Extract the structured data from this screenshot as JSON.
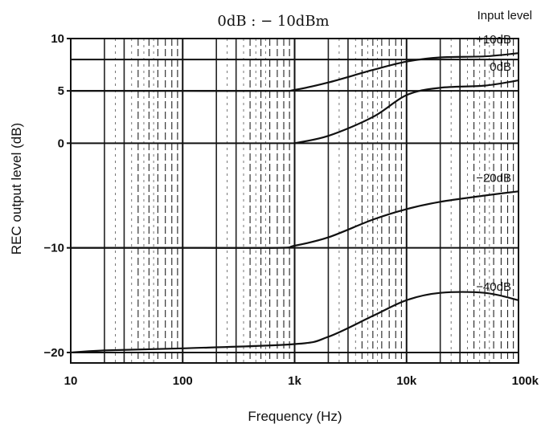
{
  "chart_data": {
    "type": "line",
    "title": "0dB : − 10dBm",
    "legend_title": "Input level",
    "xlabel": "Frequency (Hz)",
    "ylabel": "REC output level (dB)",
    "x_scale": "log",
    "xlim": [
      10,
      100000
    ],
    "ylim": [
      -21,
      10
    ],
    "grid": true,
    "x_ticks": [
      {
        "value": 10,
        "label": "10"
      },
      {
        "value": 100,
        "label": "100"
      },
      {
        "value": 1000,
        "label": "1k"
      },
      {
        "value": 10000,
        "label": "10k"
      },
      {
        "value": 100000,
        "label": "100k"
      }
    ],
    "y_ticks": [
      {
        "value": 10,
        "label": "10"
      },
      {
        "value": 5,
        "label": "5"
      },
      {
        "value": 0,
        "label": "0"
      },
      {
        "value": -10,
        "label": "−10"
      },
      {
        "value": -20,
        "label": "−20"
      }
    ],
    "reference_lines_y": [
      8,
      5,
      0,
      -10,
      -20
    ],
    "series": [
      {
        "name": "+10dB",
        "x": [
          10,
          100,
          700,
          1000,
          2000,
          5000,
          10000,
          20000,
          50000,
          100000
        ],
        "y": [
          5,
          5,
          5,
          5.1,
          5.8,
          7.0,
          7.8,
          8.2,
          8.3,
          8.6
        ]
      },
      {
        "name": "0dB",
        "x": [
          1000,
          2000,
          5000,
          10000,
          20000,
          50000,
          100000
        ],
        "y": [
          0,
          0.7,
          2.5,
          4.6,
          5.3,
          5.5,
          6.0
        ]
      },
      {
        "name": "−20dB",
        "x": [
          10,
          100,
          700,
          1000,
          2000,
          5000,
          10000,
          20000,
          50000,
          100000
        ],
        "y": [
          -10,
          -10,
          -10,
          -9.8,
          -9.0,
          -7.3,
          -6.3,
          -5.6,
          -5.0,
          -4.6
        ]
      },
      {
        "name": "−40dB",
        "x": [
          10,
          20,
          100,
          1000,
          2000,
          5000,
          10000,
          20000,
          50000,
          100000
        ],
        "y": [
          -20,
          -19.8,
          -19.6,
          -19.2,
          -18.5,
          -16.5,
          -15.0,
          -14.3,
          -14.3,
          -15.0
        ]
      }
    ]
  }
}
